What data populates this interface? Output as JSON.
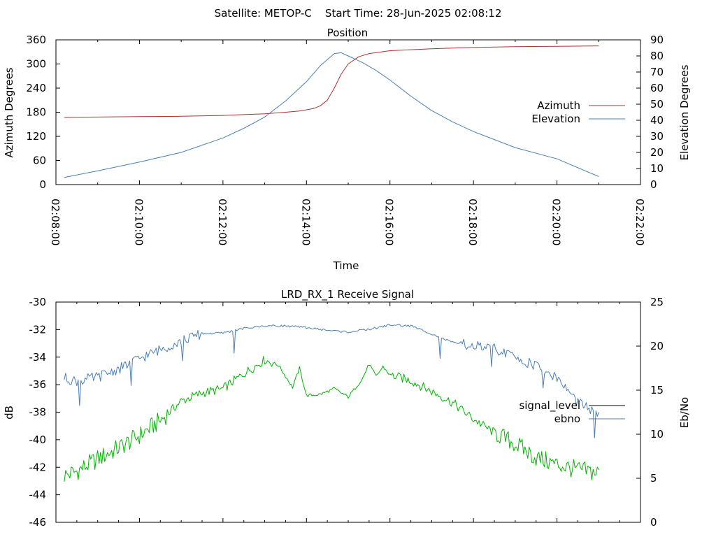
{
  "page": {
    "header": "Satellite: METOP-C    Start Time: 28-Jun-2025 02:08:12"
  },
  "chart_data": [
    {
      "type": "line",
      "title": "Position",
      "xlabel": "Time",
      "ylabel_left": "Azimuth Degrees",
      "ylabel_right": "Elevation Degrees",
      "xlim": [
        "02:08:00",
        "02:22:00"
      ],
      "x_ticks": [
        "02:08:00",
        "02:10:00",
        "02:12:00",
        "02:14:00",
        "02:16:00",
        "02:18:00",
        "02:20:00",
        "02:22:00"
      ],
      "ylim_left": [
        0,
        360
      ],
      "y_ticks_left": [
        0,
        60,
        120,
        180,
        240,
        300,
        360
      ],
      "ylim_right": [
        0,
        90
      ],
      "y_ticks_right": [
        0,
        10,
        20,
        30,
        40,
        50,
        60,
        70,
        80,
        90
      ],
      "legend_position": "right",
      "series": [
        {
          "name": "Azimuth",
          "axis": "left",
          "color": "#b03030",
          "x": [
            "02:08:12",
            "02:09:00",
            "02:10:00",
            "02:11:00",
            "02:12:00",
            "02:12:30",
            "02:13:00",
            "02:13:30",
            "02:13:50",
            "02:14:10",
            "02:14:20",
            "02:14:30",
            "02:14:40",
            "02:14:50",
            "02:15:00",
            "02:15:15",
            "02:15:30",
            "02:16:00",
            "02:17:00",
            "02:18:00",
            "02:19:00",
            "02:20:00",
            "02:21:00"
          ],
          "values": [
            167,
            168,
            169,
            170,
            172,
            174,
            176,
            180,
            183,
            189,
            196,
            210,
            240,
            275,
            300,
            318,
            326,
            333,
            338,
            341,
            343,
            344,
            345
          ]
        },
        {
          "name": "Elevation",
          "axis": "right",
          "color": "#4a7fb5",
          "x": [
            "02:08:12",
            "02:09:00",
            "02:10:00",
            "02:11:00",
            "02:12:00",
            "02:12:30",
            "02:13:00",
            "02:13:30",
            "02:14:00",
            "02:14:20",
            "02:14:40",
            "02:14:50",
            "02:15:00",
            "02:15:20",
            "02:15:40",
            "02:16:00",
            "02:16:30",
            "02:17:00",
            "02:17:30",
            "02:18:00",
            "02:18:30",
            "02:19:00",
            "02:20:00",
            "02:21:00"
          ],
          "values": [
            4.5,
            8.5,
            14,
            20,
            29,
            35,
            42,
            52,
            64,
            74,
            81.5,
            82,
            80,
            76,
            71,
            65,
            55,
            46,
            39,
            33,
            28,
            23,
            16,
            5
          ]
        }
      ]
    },
    {
      "type": "line",
      "title": "LRD_RX_1 Receive Signal",
      "ylabel_left": "dB",
      "ylabel_right": "Eb/No",
      "xlim": [
        "02:08:00",
        "02:22:00"
      ],
      "ylim_left": [
        -46,
        -30
      ],
      "y_ticks_left": [
        -46,
        -44,
        -42,
        -40,
        -38,
        -36,
        -34,
        -32,
        -30
      ],
      "ylim_right": [
        0,
        25
      ],
      "y_ticks_right": [
        0,
        5,
        10,
        15,
        20,
        25
      ],
      "legend_position": "right",
      "series": [
        {
          "name": "signal_level",
          "axis": "left",
          "color": "#00b400",
          "x": [
            "02:08:12",
            "02:08:30",
            "02:09:00",
            "02:09:30",
            "02:10:00",
            "02:10:30",
            "02:11:00",
            "02:11:30",
            "02:12:00",
            "02:12:30",
            "02:13:00",
            "02:13:20",
            "02:13:40",
            "02:13:50",
            "02:14:00",
            "02:14:20",
            "02:14:40",
            "02:15:00",
            "02:15:20",
            "02:15:30",
            "02:15:40",
            "02:15:50",
            "02:16:00",
            "02:16:30",
            "02:17:00",
            "02:17:30",
            "02:18:00",
            "02:18:30",
            "02:19:00",
            "02:19:30",
            "02:20:00",
            "02:20:30",
            "02:21:00"
          ],
          "values": [
            -42.6,
            -42.3,
            -41.4,
            -40.6,
            -39.7,
            -38.6,
            -37.2,
            -36.6,
            -36.3,
            -35.2,
            -34.2,
            -34.6,
            -36.2,
            -34.8,
            -36.8,
            -36.7,
            -36.3,
            -36.9,
            -35.6,
            -34.5,
            -35.4,
            -34.7,
            -35.3,
            -35.7,
            -36.5,
            -37.3,
            -38.5,
            -39.5,
            -40.3,
            -41.3,
            -41.8,
            -42.2,
            -42.4
          ]
        },
        {
          "name": "ebno",
          "axis": "right",
          "color": "#4a7fb5",
          "x": [
            "02:08:12",
            "02:08:30",
            "02:09:00",
            "02:09:30",
            "02:10:00",
            "02:10:30",
            "02:11:00",
            "02:11:30",
            "02:12:00",
            "02:12:30",
            "02:13:00",
            "02:13:30",
            "02:14:00",
            "02:14:30",
            "02:15:00",
            "02:15:30",
            "02:16:00",
            "02:16:30",
            "02:17:00",
            "02:17:30",
            "02:18:00",
            "02:18:30",
            "02:19:00",
            "02:19:30",
            "02:20:00",
            "02:20:30",
            "02:21:00"
          ],
          "values": [
            16.4,
            16.0,
            16.5,
            17.4,
            18.6,
            19.6,
            20.6,
            21.4,
            21.5,
            22.0,
            22.3,
            22.3,
            22.1,
            21.8,
            21.6,
            21.9,
            22.4,
            22.3,
            21.4,
            20.4,
            20.0,
            19.7,
            18.7,
            17.8,
            16.4,
            13.6,
            12.2
          ]
        }
      ]
    }
  ]
}
